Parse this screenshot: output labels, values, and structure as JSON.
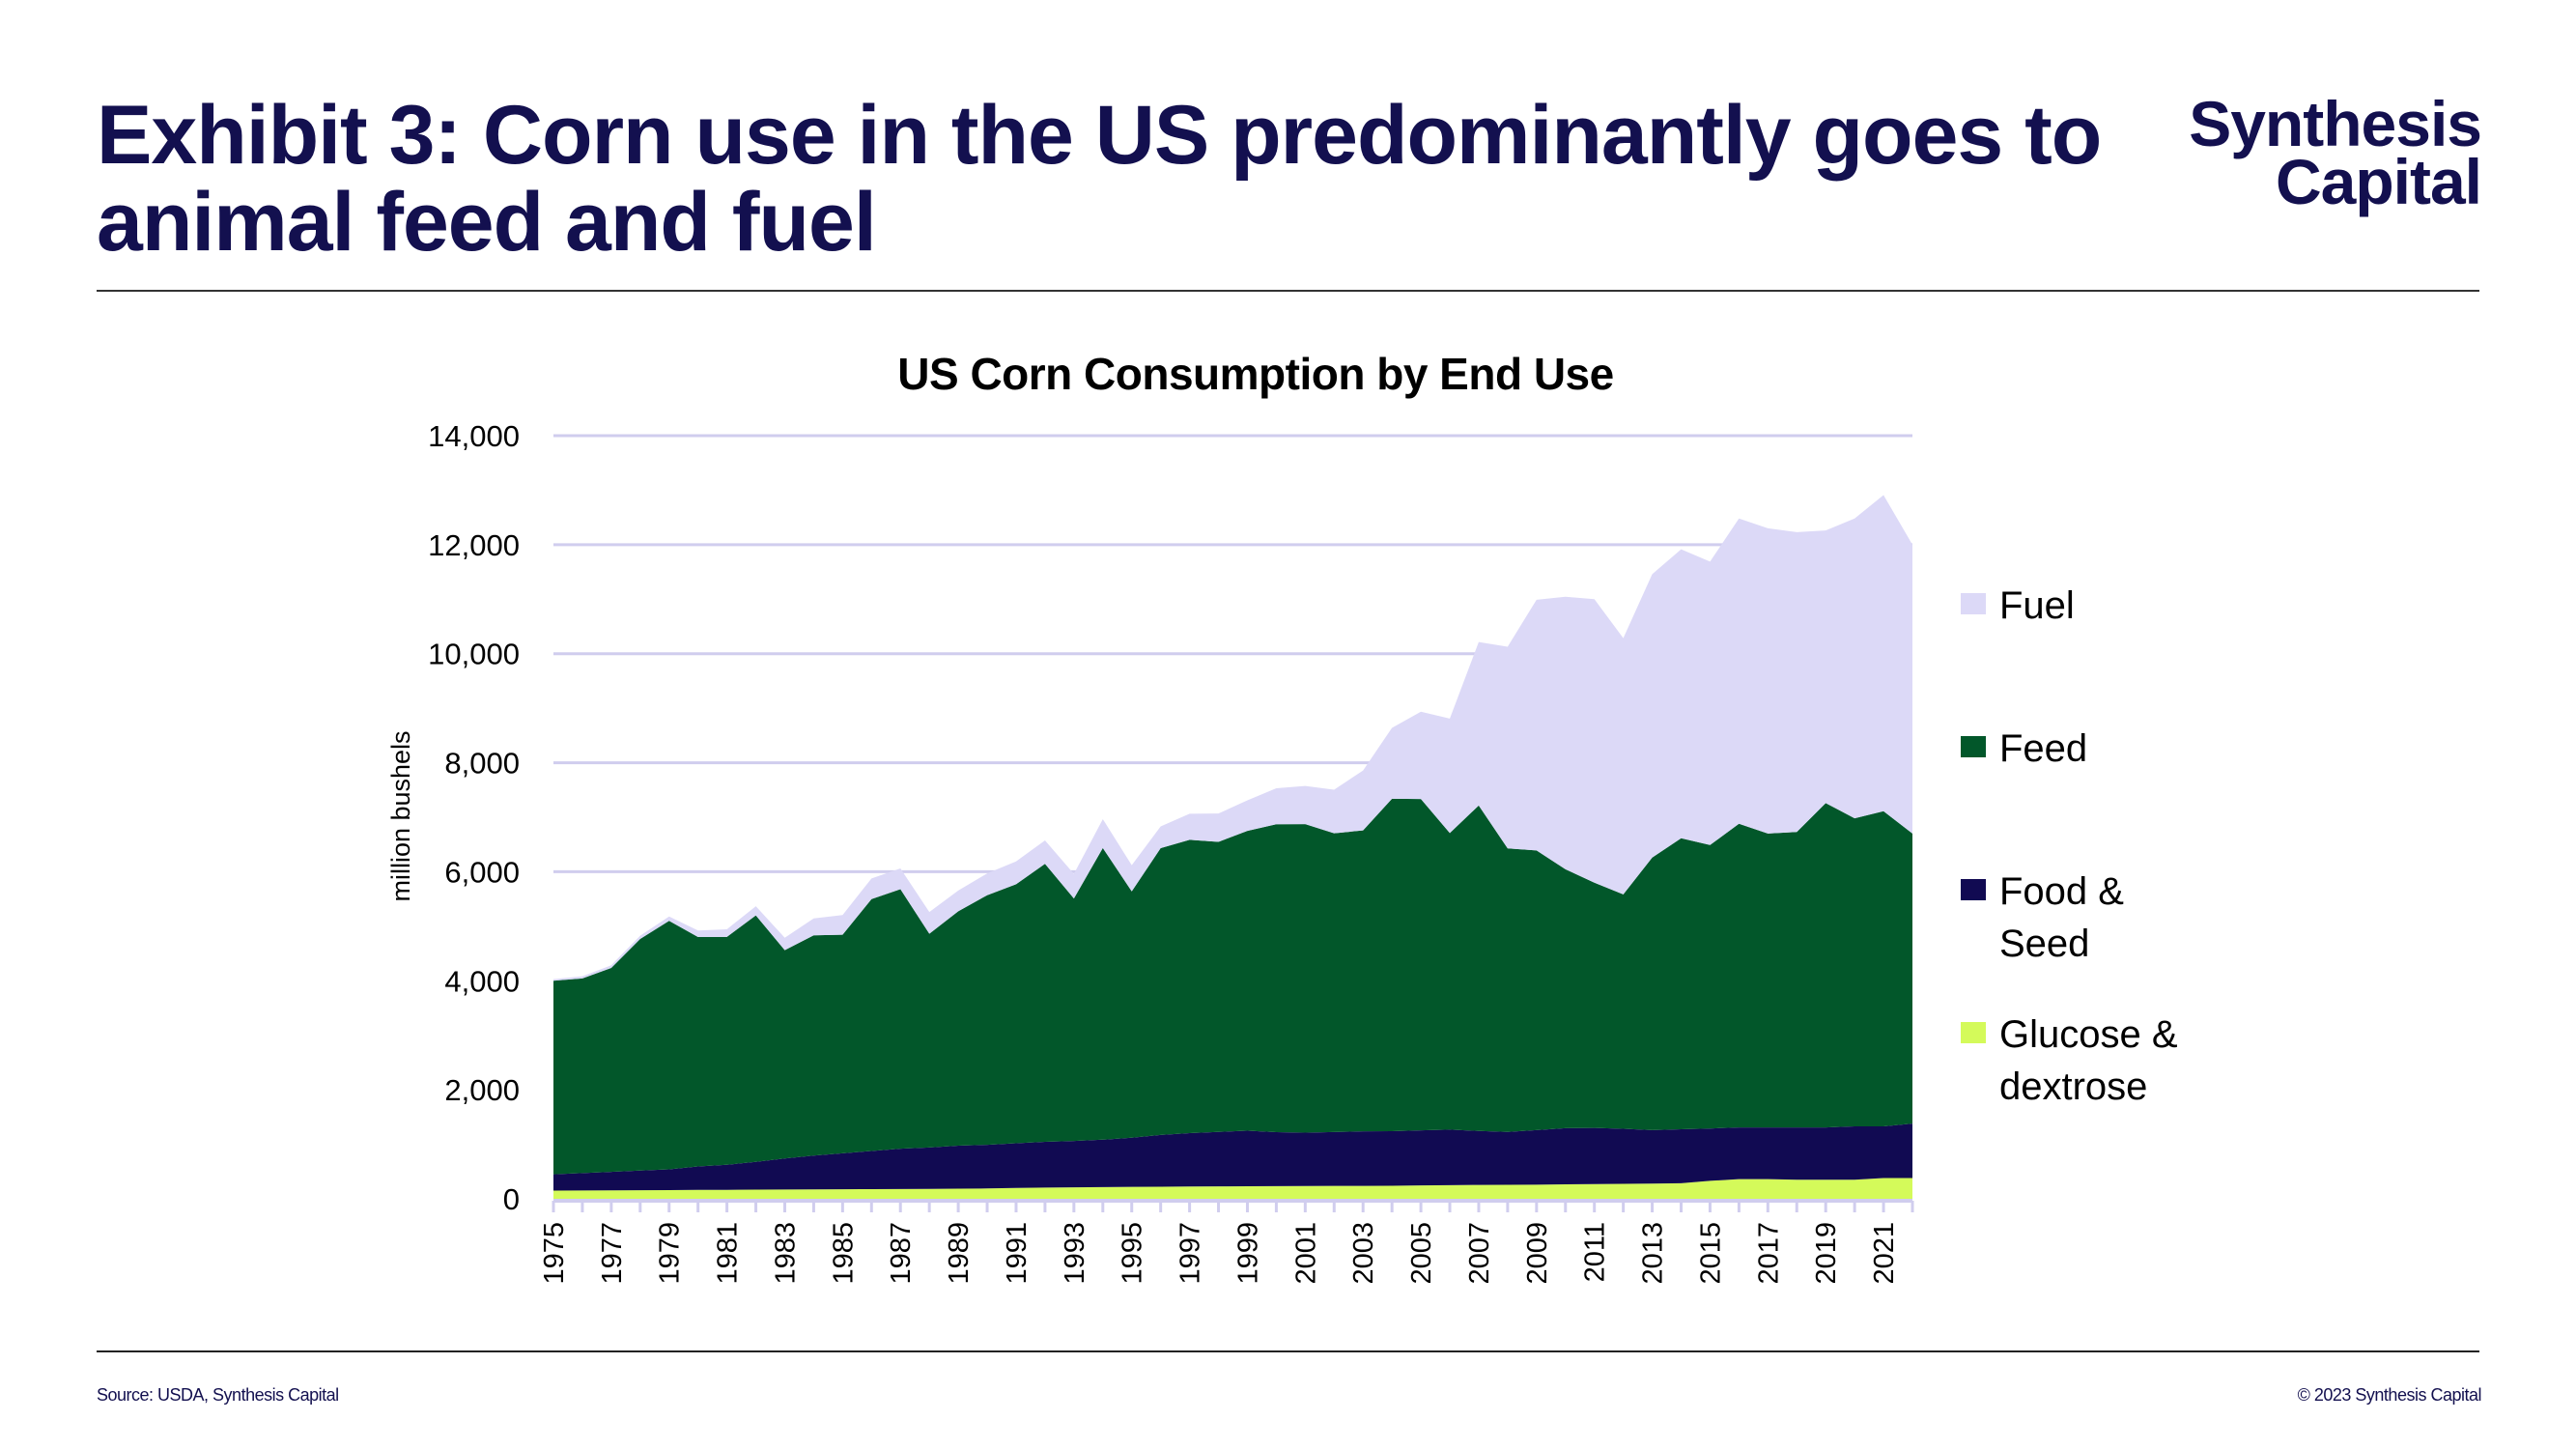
{
  "header": {
    "title": "Exhibit 3: Corn use in the US predominantly goes to animal feed and fuel",
    "logo_line1": "Synthesis",
    "logo_line2": "Capital"
  },
  "footer": {
    "source": "Source: USDA, Synthesis Capital",
    "copyright": "© 2023 Synthesis Capital"
  },
  "colors": {
    "brand": "#13104f",
    "gridline": "#d0cdee",
    "fuel": "#dcd9f7",
    "feed": "#02572a",
    "food_seed": "#110a52",
    "glucose": "#d4fa5a"
  },
  "chart_data": {
    "type": "area",
    "stacked": true,
    "title": "US Corn Consumption by End Use",
    "xlabel": "",
    "ylabel": "million bushels",
    "ylim": [
      0,
      14000
    ],
    "yticks": [
      0,
      2000,
      4000,
      6000,
      8000,
      10000,
      12000,
      14000
    ],
    "ytick_labels": [
      "0",
      "2,000",
      "4,000",
      "6,000",
      "8,000",
      "10,000",
      "12,000",
      "14,000"
    ],
    "grid": true,
    "legend_position": "right",
    "x": [
      1975,
      1976,
      1977,
      1978,
      1979,
      1980,
      1981,
      1982,
      1983,
      1984,
      1985,
      1986,
      1987,
      1988,
      1989,
      1990,
      1991,
      1992,
      1993,
      1994,
      1995,
      1996,
      1997,
      1998,
      1999,
      2000,
      2001,
      2002,
      2003,
      2004,
      2005,
      2006,
      2007,
      2008,
      2009,
      2010,
      2011,
      2012,
      2013,
      2014,
      2015,
      2016,
      2017,
      2018,
      2019,
      2020,
      2021,
      2022
    ],
    "xtick_labels": [
      "1975",
      "1977",
      "1979",
      "1981",
      "1983",
      "1985",
      "1987",
      "1989",
      "1991",
      "1993",
      "1995",
      "1997",
      "1999",
      "2001",
      "2003",
      "2005",
      "2007",
      "2009",
      "2011",
      "2013",
      "2015",
      "2017",
      "2019",
      "2021"
    ],
    "series": [
      {
        "name": "Glucose & dextrose",
        "color_key": "glucose",
        "values": [
          150,
          152,
          155,
          158,
          160,
          163,
          165,
          168,
          170,
          173,
          175,
          178,
          180,
          182,
          185,
          190,
          200,
          205,
          210,
          215,
          220,
          222,
          225,
          228,
          230,
          232,
          234,
          236,
          238,
          240,
          245,
          250,
          255,
          258,
          260,
          265,
          270,
          275,
          280,
          285,
          330,
          360,
          360,
          350,
          350,
          350,
          380,
          380
        ]
      },
      {
        "name": "Food & Seed",
        "color_key": "food_seed",
        "values": [
          300,
          320,
          340,
          360,
          380,
          430,
          460,
          510,
          570,
          620,
          660,
          700,
          740,
          760,
          790,
          800,
          820,
          840,
          850,
          870,
          900,
          950,
          980,
          1000,
          1020,
          990,
          980,
          990,
          1000,
          1000,
          1010,
          1020,
          990,
          970,
          1000,
          1030,
          1030,
          1010,
          980,
          990,
          960,
          950,
          950,
          960,
          960,
          980,
          950,
          1000
        ]
      },
      {
        "name": "Feed",
        "color_key": "feed",
        "values": [
          3550,
          3570,
          3740,
          4250,
          4560,
          4210,
          4180,
          4520,
          3820,
          4040,
          4010,
          4620,
          4760,
          3920,
          4300,
          4580,
          4750,
          5100,
          4450,
          5350,
          4520,
          5260,
          5380,
          5320,
          5500,
          5650,
          5660,
          5480,
          5520,
          6100,
          6080,
          5440,
          5970,
          5200,
          5130,
          4750,
          4500,
          4300,
          5000,
          5340,
          5200,
          5570,
          5390,
          5420,
          5950,
          5650,
          5780,
          5320
        ]
      },
      {
        "name": "Fuel",
        "color_key": "fuel",
        "values": [
          30,
          40,
          50,
          60,
          80,
          120,
          140,
          170,
          230,
          310,
          360,
          380,
          380,
          400,
          380,
          400,
          420,
          430,
          450,
          530,
          480,
          400,
          480,
          520,
          560,
          660,
          700,
          800,
          1100,
          1300,
          1600,
          2100,
          3000,
          3700,
          4600,
          5000,
          5200,
          4700,
          5200,
          5300,
          5200,
          5600,
          5600,
          5500,
          5000,
          5500,
          5800,
          5300
        ]
      }
    ],
    "legend": [
      {
        "label_line1": "Fuel",
        "label_line2": "",
        "color_key": "fuel"
      },
      {
        "label_line1": "Feed",
        "label_line2": "",
        "color_key": "feed"
      },
      {
        "label_line1": "Food &",
        "label_line2": "Seed",
        "color_key": "food_seed"
      },
      {
        "label_line1": "Glucose &",
        "label_line2": "dextrose",
        "color_key": "glucose"
      }
    ]
  }
}
